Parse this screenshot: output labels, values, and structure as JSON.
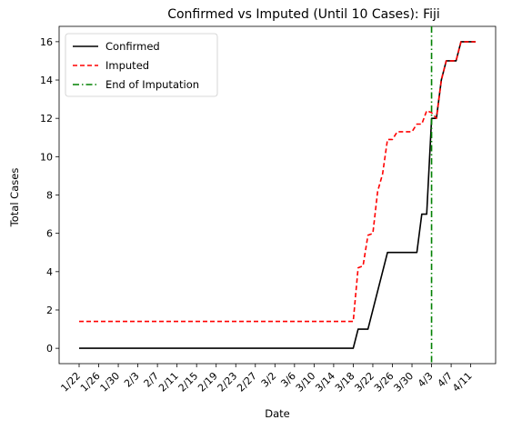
{
  "chart_data": {
    "type": "line",
    "title": "Confirmed vs Imputed (Until 10 Cases): Fiji",
    "xlabel": "Date",
    "ylabel": "Total Cases",
    "x_tick_labels": [
      "1/22",
      "1/26",
      "1/30",
      "2/3",
      "2/7",
      "2/11",
      "2/15",
      "2/19",
      "2/23",
      "2/27",
      "3/2",
      "3/6",
      "3/10",
      "3/14",
      "3/18",
      "3/22",
      "3/26",
      "3/30",
      "4/3",
      "4/7",
      "4/11"
    ],
    "ylim": [
      -0.8,
      16.8
    ],
    "y_ticks": [
      0,
      2,
      4,
      6,
      8,
      10,
      12,
      14,
      16
    ],
    "grid": false,
    "legend_position": "top-left",
    "vline": {
      "label": "End of Imputation",
      "date": "4/3",
      "color": "#008000"
    },
    "series": [
      {
        "name": "Confirmed",
        "color": "#000000",
        "style": "solid",
        "points": [
          [
            "1/22",
            0
          ],
          [
            "3/18",
            0
          ],
          [
            "3/19",
            1
          ],
          [
            "3/20",
            1
          ],
          [
            "3/21",
            1
          ],
          [
            "3/25",
            5
          ],
          [
            "3/31",
            5
          ],
          [
            "4/1",
            7
          ],
          [
            "4/2",
            7
          ],
          [
            "4/3",
            12
          ],
          [
            "4/4",
            12
          ],
          [
            "4/5",
            14
          ],
          [
            "4/6",
            15
          ],
          [
            "4/8",
            15
          ],
          [
            "4/9",
            16
          ],
          [
            "4/12",
            16
          ]
        ]
      },
      {
        "name": "Imputed",
        "color": "#ff0000",
        "style": "dashed",
        "points": [
          [
            "1/22",
            1.4
          ],
          [
            "3/18",
            1.4
          ],
          [
            "3/19",
            4.2
          ],
          [
            "3/20",
            4.3
          ],
          [
            "3/21",
            5.9
          ],
          [
            "3/22",
            6.0
          ],
          [
            "3/23",
            8.2
          ],
          [
            "3/24",
            9.1
          ],
          [
            "3/25",
            10.9
          ],
          [
            "3/26",
            10.9
          ],
          [
            "3/27",
            11.3
          ],
          [
            "3/30",
            11.3
          ],
          [
            "3/31",
            11.7
          ],
          [
            "4/1",
            11.7
          ],
          [
            "4/2",
            12.4
          ],
          [
            "4/3",
            12.3
          ],
          [
            "4/4",
            12.0
          ],
          [
            "4/5",
            14.0
          ],
          [
            "4/6",
            15.0
          ],
          [
            "4/8",
            15.0
          ],
          [
            "4/9",
            16.0
          ],
          [
            "4/12",
            16.0
          ]
        ]
      }
    ]
  }
}
